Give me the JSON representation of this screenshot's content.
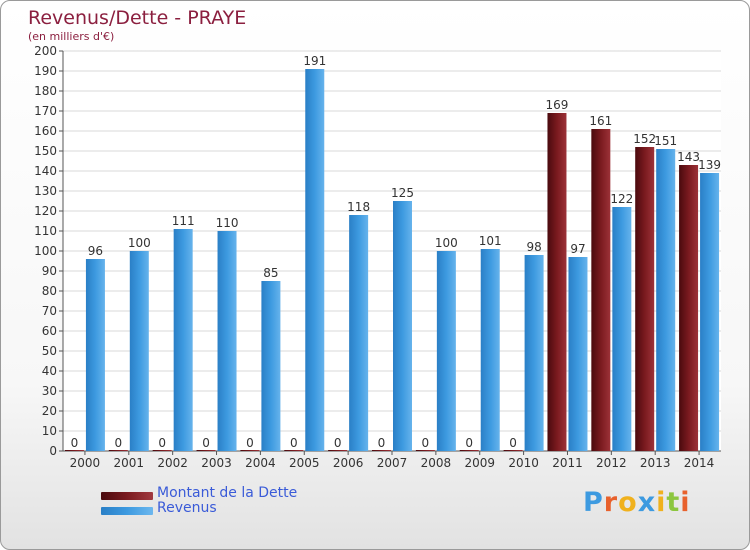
{
  "title": "Revenus/Dette - PRAYE",
  "subtitle": "(en milliers d'€)",
  "colors": {
    "dette": "#7a1a1f",
    "revenus": "#3d9ae0",
    "title": "#8b1f3f",
    "legend_text": "#3a5bd8"
  },
  "chart_data": {
    "type": "bar",
    "title": "Revenus/Dette - PRAYE",
    "ylabel": "(en milliers d'€)",
    "xlabel": "",
    "ylim": [
      0,
      200
    ],
    "ytick_step": 10,
    "grid": true,
    "categories": [
      "2000",
      "2001",
      "2002",
      "2003",
      "2004",
      "2005",
      "2006",
      "2007",
      "2008",
      "2009",
      "2010",
      "2011",
      "2012",
      "2013",
      "2014"
    ],
    "series": [
      {
        "name": "Montant de la Dette",
        "values": [
          0,
          0,
          0,
          0,
          0,
          0,
          0,
          0,
          0,
          0,
          0,
          169,
          161,
          152,
          143
        ]
      },
      {
        "name": "Revenus",
        "values": [
          96,
          100,
          111,
          110,
          85,
          191,
          118,
          125,
          100,
          101,
          98,
          97,
          122,
          151,
          139
        ]
      }
    ],
    "legend_position": "bottom-left"
  },
  "legend": {
    "items": [
      {
        "label": "Montant de la Dette"
      },
      {
        "label": "Revenus"
      }
    ]
  },
  "logo": {
    "text": "Proxiti",
    "letter_colors": [
      "#3d9ae0",
      "#e8612c",
      "#f0b11d",
      "#3d9ae0",
      "#f0b11d",
      "#8cc63f",
      "#e8612c"
    ]
  }
}
